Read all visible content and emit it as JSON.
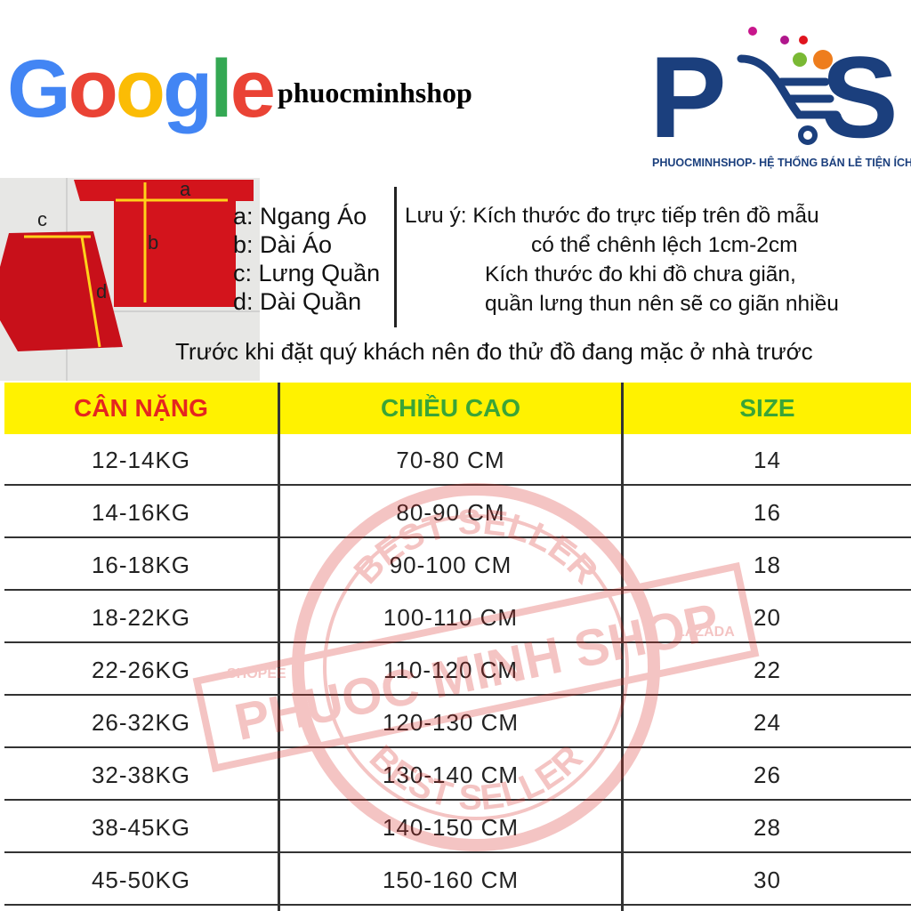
{
  "header": {
    "google_logo": "Google",
    "shop_name": "phuocminhshop",
    "logo_letters": "PMS",
    "logo_tagline": "PHUOCMINHSHOP- HỆ THỐNG BÁN LẺ TIỆN ÍCH"
  },
  "photo": {
    "labels": [
      "a",
      "b",
      "c",
      "d"
    ]
  },
  "legend": [
    "a: Ngang Áo",
    "b: Dài Áo",
    "c: Lưng Quần",
    "d: Dài Quần"
  ],
  "note": [
    "Lưu ý: Kích thước đo trực tiếp trên đồ mẫu",
    "có thể chênh lệch 1cm-2cm",
    "Kích thước đo khi đồ chưa giãn,",
    "quần lưng thun nên sẽ co giãn nhiều"
  ],
  "advice": "Trước khi đặt quý khách nên đo thử đồ đang mặc ở nhà trước",
  "table": {
    "headers": [
      "CÂN NẶNG",
      "CHIỀU CAO",
      "SIZE"
    ],
    "header_colors": [
      "#e5261f",
      "#3aa537",
      "#3aa537"
    ],
    "rows": [
      [
        "12-14KG",
        "70-80 CM",
        "14"
      ],
      [
        "14-16KG",
        "80-90 CM",
        "16"
      ],
      [
        "16-18KG",
        "90-100 CM",
        "18"
      ],
      [
        "18-22KG",
        "100-110 CM",
        "20"
      ],
      [
        "22-26KG",
        "110-120 CM",
        "22"
      ],
      [
        "26-32KG",
        "120-130 CM",
        "24"
      ],
      [
        "32-38KG",
        "130-140 CM",
        "26"
      ],
      [
        "38-45KG",
        "140-150 CM",
        "28"
      ],
      [
        "45-50KG",
        "150-160 CM",
        "30"
      ]
    ]
  },
  "watermark": {
    "top": "BEST SELLER",
    "middle": "PHUOC MINH SHOP",
    "left": "SHOPEE",
    "right": "LAZADA",
    "bottom": "BEST SELLER"
  },
  "colors": {
    "brand_blue": "#1b3f7d",
    "header_yellow": "#fff200",
    "stamp_red": "#d9302b"
  }
}
